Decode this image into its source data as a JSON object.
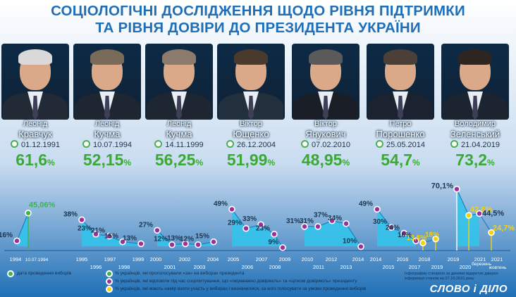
{
  "title_line1": "СОЦІОЛОГІЧНІ ДОСЛІДЖЕННЯ ЩОДО РІВНЯ ПІДТРИМКИ",
  "title_line2": "ТА РІВНЯ ДОВІРИ ДО ПРЕЗИДЕНТА УКРАЇНИ",
  "presidents": [
    {
      "first": "Леонід",
      "last": "Кравчук",
      "date": "01.12.1991",
      "pct": "61,6",
      "hair": "#d9d9d9",
      "suit": "#222a35"
    },
    {
      "first": "Леонід",
      "last": "Кучма",
      "date": "10.07.1994",
      "pct": "52,15",
      "hair": "#7a6a5a",
      "suit": "#1e2631"
    },
    {
      "first": "Леонід",
      "last": "Кучма",
      "date": "14.11.1999",
      "pct": "56,25",
      "hair": "#8a7b6c",
      "suit": "#1e2631"
    },
    {
      "first": "Віктор",
      "last": "Ющенко",
      "date": "26.12.2004",
      "pct": "51,99",
      "hair": "#4a3a2e",
      "suit": "#22303e"
    },
    {
      "first": "Віктор",
      "last": "Янукович",
      "date": "07.02.2010",
      "pct": "48,95",
      "hair": "#5a5a5a",
      "suit": "#1a1e26"
    },
    {
      "first": "Петро",
      "last": "Порошенко",
      "date": "25.05.2014",
      "pct": "54,7",
      "hair": "#4a4038",
      "suit": "#1b2330"
    },
    {
      "first": "Володимир",
      "last": "Зеленський",
      "date": "21.04.2019",
      "pct": "73,2",
      "hair": "#2e2520",
      "suit": "#1c2430"
    }
  ],
  "pct_sign": "%",
  "chart_data": {
    "type": "line",
    "groups": [
      {
        "points": [
          {
            "x": "1994",
            "y": 16
          },
          {
            "x": "10.07.1994",
            "y": 45.06,
            "label": "45,06"
          }
        ]
      },
      {
        "points": [
          {
            "x": "1995",
            "y": 38
          },
          {
            "x": "1996",
            "y": 23
          },
          {
            "x": "1997",
            "y": 21
          },
          {
            "x": "1998",
            "y": 15
          },
          {
            "x": "1999",
            "y": 13
          }
        ]
      },
      {
        "points": [
          {
            "x": "2000",
            "y": 27
          },
          {
            "x": "2001",
            "y": 12
          },
          {
            "x": "2002",
            "y": 13
          },
          {
            "x": "2003",
            "y": 12
          },
          {
            "x": "2004",
            "y": 15
          }
        ]
      },
      {
        "points": [
          {
            "x": "2005",
            "y": 49
          },
          {
            "x": "2006",
            "y": 29
          },
          {
            "x": "2007",
            "y": 33
          },
          {
            "x": "2008",
            "y": 23
          },
          {
            "x": "2009",
            "y": 9
          }
        ]
      },
      {
        "points": [
          {
            "x": "2010",
            "y": 31
          },
          {
            "x": "2011",
            "y": 31
          },
          {
            "x": "2012",
            "y": 37
          },
          {
            "x": "2013",
            "y": 34
          },
          {
            "x": "2014",
            "y": 10
          }
        ]
      },
      {
        "points": [
          {
            "x": "2014",
            "y": 49
          },
          {
            "x": "2015",
            "y": 30
          },
          {
            "x": "2016",
            "y": 24
          },
          {
            "x": "2017",
            "y": 16
          },
          {
            "x": "2018",
            "y": 13.8,
            "label": "13,8"
          },
          {
            "x": "2019",
            "y": 18
          }
        ]
      },
      {
        "points": [
          {
            "x": "2019",
            "y": 70.1,
            "label": "70,1"
          },
          {
            "x": "2020",
            "y": 42.6,
            "label": "42,6"
          },
          {
            "x": "2021 березень",
            "y": 44.5,
            "label": "44,5"
          },
          {
            "x": "2021 жовтень",
            "y": 24.7,
            "label": "24,7"
          }
        ]
      }
    ],
    "year_labels": [
      [
        "1994",
        "10.07.1994"
      ],
      [
        "1995",
        "1996",
        "1997",
        "1998",
        "1999"
      ],
      [
        "2000",
        "2001",
        "2002",
        "2003",
        "2004"
      ],
      [
        "2005",
        "2006",
        "2007",
        "2008",
        "2009"
      ],
      [
        "2010",
        "2011",
        "2012",
        "2013",
        "2014"
      ],
      [
        "2014",
        "2015",
        "2016",
        "2017",
        "2018",
        "2019"
      ],
      [
        "2019",
        "2020",
        "2021",
        "березень",
        "2021",
        "жовтень"
      ]
    ],
    "colors": {
      "trust": "#9b2f9b",
      "election": "#39b54a",
      "intent": "#f5d20a",
      "area": "#2fc5ec"
    }
  },
  "legend": {
    "date_label": "дата проведення виборів",
    "item1": "% українців, які проголосували «за» на виборах президента",
    "item2": "% українців, які відповіли під час соцопитування, що «переважно довіряють» та «цілком довіряють» президенту",
    "item3": "% українців, які мають намір взяти участь у виборах і визначилися, за кого голосувати за умови проведення виборів"
  },
  "credit": "Інфографіку створено за даними відкритих джерел інформації станом на 27.10.2021 року",
  "brand": "СЛОВО і ДІЛО"
}
